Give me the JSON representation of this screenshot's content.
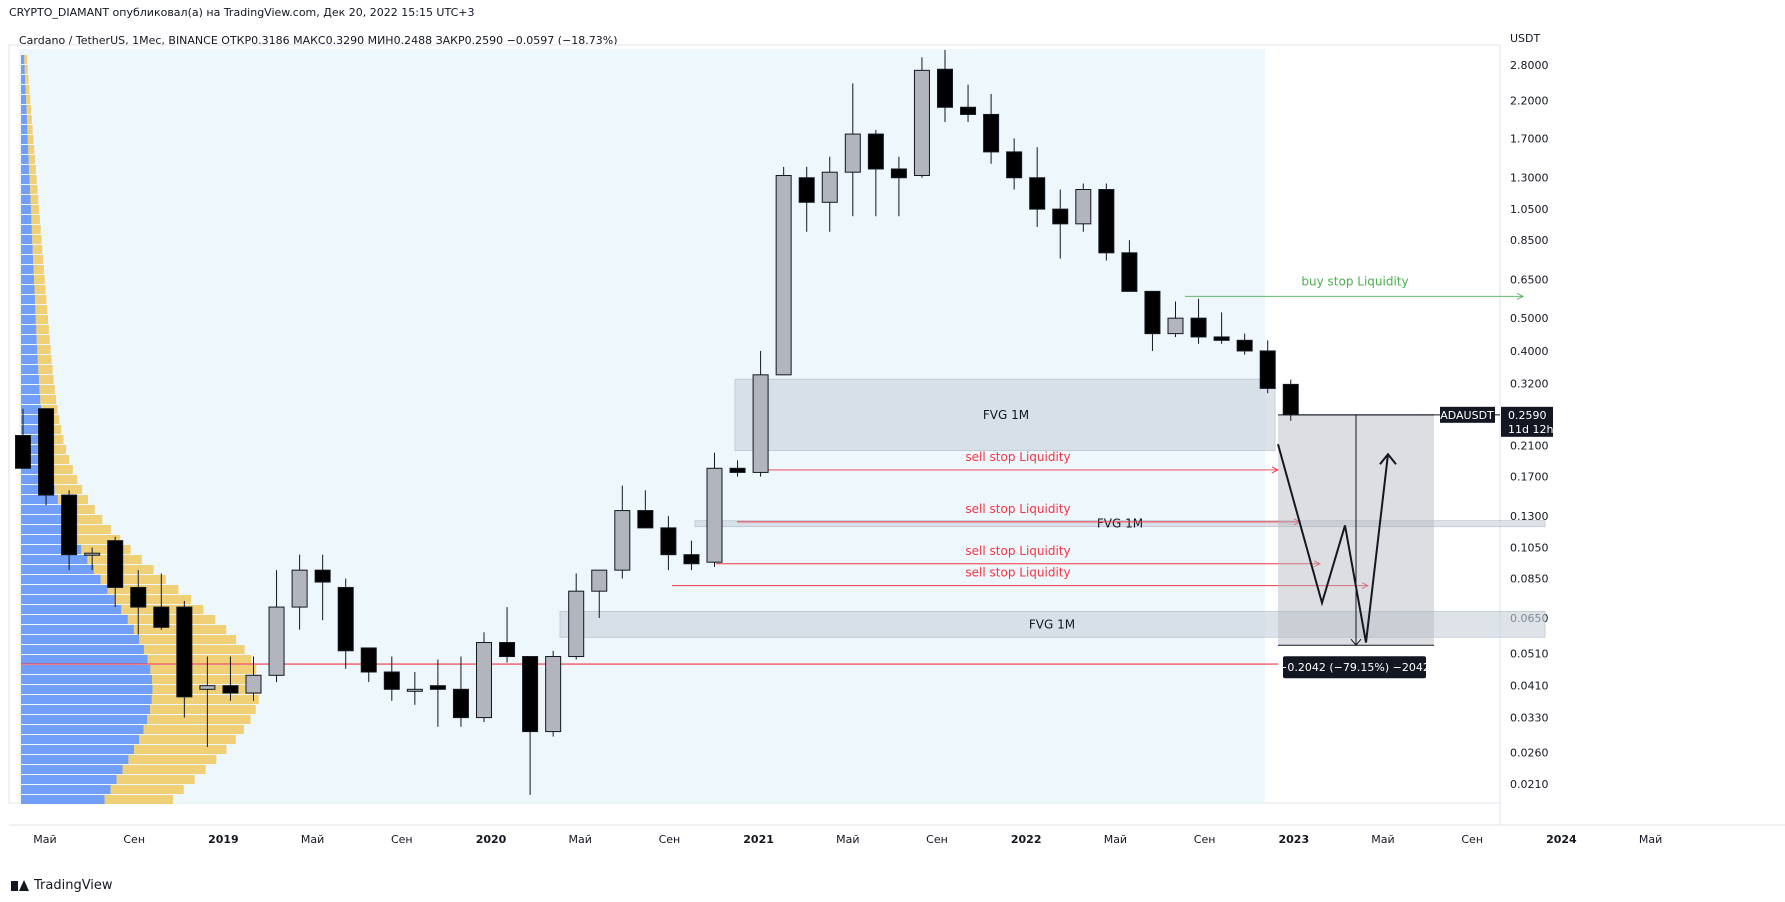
{
  "header": {
    "publish_line": "CRYPTO_DIAMANT опубликовал(а) на TradingView.com, Дек 20, 2022 15:15 UTC+3"
  },
  "legend": {
    "text": "Cardano / TetherUS, 1Мес, BINANCE  ОТКР0.3186  МАКС0.3290  МИН0.2488  ЗАКР0.2590  −0.0597 (−18.73%)"
  },
  "brand": {
    "name": "TradingView"
  },
  "chart_data": {
    "type": "candlestick",
    "symbol": "ADAUSDT",
    "exchange": "BINANCE",
    "timeframe": "1M",
    "scale": "log",
    "currency_label": "USDT",
    "price_ticks": [
      "2.8000",
      "2.2000",
      "1.7000",
      "1.3000",
      "1.0500",
      "0.8500",
      "0.6500",
      "0.5000",
      "0.4000",
      "0.3200",
      "0.2100",
      "0.1700",
      "0.1300",
      "0.1050",
      "0.0850",
      "0.0650",
      "0.0510",
      "0.0410",
      "0.0330",
      "0.0260",
      "0.0210"
    ],
    "time_ticks": [
      "Май",
      "Сен",
      "2019",
      "Май",
      "Сен",
      "2020",
      "Май",
      "Сен",
      "2021",
      "Май",
      "Сен",
      "2022",
      "Май",
      "Сен",
      "2023",
      "Май",
      "Сен",
      "2024",
      "Май"
    ],
    "time_ticks_bold": [
      "2019",
      "2020",
      "2021",
      "2022",
      "2023",
      "2024"
    ],
    "last_price": {
      "symbol": "ADAUSDT",
      "value": "0.2590",
      "countdown": "11d 12h"
    },
    "colors": {
      "up": "#b2b5be",
      "down": "#000000",
      "bg_region": "#eef7fc",
      "vp_blue": "#5b8ef5",
      "vp_yellow": "#f0c95e",
      "red": "#f23645",
      "green": "#4caf50",
      "zone": "#c9d1db"
    },
    "candles": [
      {
        "o": 0.225,
        "h": 0.27,
        "l": 0.19,
        "c": 0.18
      },
      {
        "o": 0.27,
        "h": 0.27,
        "l": 0.14,
        "c": 0.15
      },
      {
        "o": 0.15,
        "h": 0.155,
        "l": 0.09,
        "c": 0.1
      },
      {
        "o": 0.1,
        "h": 0.105,
        "l": 0.09,
        "c": 0.101
      },
      {
        "o": 0.11,
        "h": 0.113,
        "l": 0.07,
        "c": 0.08
      },
      {
        "o": 0.08,
        "h": 0.09,
        "l": 0.058,
        "c": 0.07
      },
      {
        "o": 0.07,
        "h": 0.088,
        "l": 0.06,
        "c": 0.061
      },
      {
        "o": 0.07,
        "h": 0.073,
        "l": 0.033,
        "c": 0.038
      },
      {
        "o": 0.04,
        "h": 0.05,
        "l": 0.027,
        "c": 0.041
      },
      {
        "o": 0.041,
        "h": 0.05,
        "l": 0.037,
        "c": 0.039
      },
      {
        "o": 0.039,
        "h": 0.05,
        "l": 0.037,
        "c": 0.044
      },
      {
        "o": 0.044,
        "h": 0.09,
        "l": 0.042,
        "c": 0.07
      },
      {
        "o": 0.07,
        "h": 0.1,
        "l": 0.06,
        "c": 0.09
      },
      {
        "o": 0.09,
        "h": 0.1,
        "l": 0.064,
        "c": 0.083
      },
      {
        "o": 0.08,
        "h": 0.085,
        "l": 0.046,
        "c": 0.052
      },
      {
        "o": 0.053,
        "h": 0.053,
        "l": 0.042,
        "c": 0.045
      },
      {
        "o": 0.045,
        "h": 0.05,
        "l": 0.037,
        "c": 0.04
      },
      {
        "o": 0.04,
        "h": 0.045,
        "l": 0.036,
        "c": 0.04
      },
      {
        "o": 0.041,
        "h": 0.049,
        "l": 0.031,
        "c": 0.04
      },
      {
        "o": 0.04,
        "h": 0.05,
        "l": 0.031,
        "c": 0.033
      },
      {
        "o": 0.033,
        "h": 0.059,
        "l": 0.032,
        "c": 0.055
      },
      {
        "o": 0.055,
        "h": 0.07,
        "l": 0.048,
        "c": 0.05
      },
      {
        "o": 0.05,
        "h": 0.05,
        "l": 0.0195,
        "c": 0.03
      },
      {
        "o": 0.03,
        "h": 0.052,
        "l": 0.029,
        "c": 0.05
      },
      {
        "o": 0.05,
        "h": 0.088,
        "l": 0.049,
        "c": 0.078
      },
      {
        "o": 0.078,
        "h": 0.09,
        "l": 0.065,
        "c": 0.09
      },
      {
        "o": 0.09,
        "h": 0.16,
        "l": 0.085,
        "c": 0.135
      },
      {
        "o": 0.135,
        "h": 0.155,
        "l": 0.12,
        "c": 0.12
      },
      {
        "o": 0.12,
        "h": 0.13,
        "l": 0.09,
        "c": 0.1
      },
      {
        "o": 0.1,
        "h": 0.11,
        "l": 0.09,
        "c": 0.094
      },
      {
        "o": 0.095,
        "h": 0.2,
        "l": 0.092,
        "c": 0.18
      },
      {
        "o": 0.18,
        "h": 0.19,
        "l": 0.17,
        "c": 0.175
      },
      {
        "o": 0.175,
        "h": 0.4,
        "l": 0.17,
        "c": 0.34
      },
      {
        "o": 0.34,
        "h": 1.4,
        "l": 0.34,
        "c": 1.32
      },
      {
        "o": 1.3,
        "h": 1.4,
        "l": 0.9,
        "c": 1.1
      },
      {
        "o": 1.1,
        "h": 1.5,
        "l": 0.9,
        "c": 1.35
      },
      {
        "o": 1.35,
        "h": 2.47,
        "l": 1.0,
        "c": 1.75
      },
      {
        "o": 1.75,
        "h": 1.8,
        "l": 1.0,
        "c": 1.38
      },
      {
        "o": 1.38,
        "h": 1.5,
        "l": 1.0,
        "c": 1.3
      },
      {
        "o": 1.32,
        "h": 2.95,
        "l": 1.3,
        "c": 2.7
      },
      {
        "o": 2.72,
        "h": 3.1,
        "l": 1.9,
        "c": 2.1
      },
      {
        "o": 2.1,
        "h": 2.45,
        "l": 1.9,
        "c": 2.0
      },
      {
        "o": 2.0,
        "h": 2.3,
        "l": 1.43,
        "c": 1.55
      },
      {
        "o": 1.55,
        "h": 1.7,
        "l": 1.2,
        "c": 1.3
      },
      {
        "o": 1.3,
        "h": 1.6,
        "l": 0.93,
        "c": 1.05
      },
      {
        "o": 1.05,
        "h": 1.2,
        "l": 0.75,
        "c": 0.95
      },
      {
        "o": 0.95,
        "h": 1.25,
        "l": 0.9,
        "c": 1.2
      },
      {
        "o": 1.2,
        "h": 1.25,
        "l": 0.74,
        "c": 0.78
      },
      {
        "o": 0.78,
        "h": 0.85,
        "l": 0.6,
        "c": 0.6
      },
      {
        "o": 0.6,
        "h": 0.6,
        "l": 0.4,
        "c": 0.45
      },
      {
        "o": 0.45,
        "h": 0.56,
        "l": 0.44,
        "c": 0.5
      },
      {
        "o": 0.5,
        "h": 0.57,
        "l": 0.42,
        "c": 0.44
      },
      {
        "o": 0.44,
        "h": 0.52,
        "l": 0.42,
        "c": 0.43
      },
      {
        "o": 0.43,
        "h": 0.45,
        "l": 0.39,
        "c": 0.4
      },
      {
        "o": 0.4,
        "h": 0.43,
        "l": 0.3,
        "c": 0.31
      },
      {
        "o": 0.3186,
        "h": 0.329,
        "l": 0.2488,
        "c": 0.259
      }
    ],
    "annotations": {
      "fvg_label": "FVG 1M",
      "fvg_zones": [
        {
          "from": 0.203,
          "to": 0.33
        },
        {
          "from": 0.121,
          "to": 0.126
        },
        {
          "from": 0.057,
          "to": 0.068
        }
      ],
      "sell_stop_label": "sell stop Liquidity",
      "sell_stop_lines": [
        0.178,
        0.125,
        0.094,
        0.081
      ],
      "buy_stop_label": "buy stop Liquidity",
      "buy_stop_level": 0.58,
      "red_level": 0.0475,
      "measure": {
        "from": 0.259,
        "to": 0.054,
        "label": "−0.2042 (−79.15%) −2042"
      },
      "projection_path": [
        0.212,
        0.072,
        0.122,
        0.055,
        0.198
      ]
    }
  }
}
